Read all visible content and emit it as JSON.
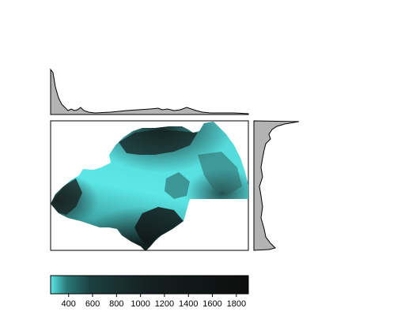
{
  "raster_map": {
    "colors": {
      "low": "#5ce6e6",
      "mid": "#1a2b2b",
      "high": "#0d0d0d",
      "density_fill": "#b3b3b3",
      "frame": "#000000"
    },
    "legend": {
      "range": [
        250,
        1900
      ],
      "ticks": [
        {
          "value": 400,
          "label": "400"
        },
        {
          "value": 600,
          "label": "600"
        },
        {
          "value": 800,
          "label": "800"
        },
        {
          "value": 1000,
          "label": "1000"
        },
        {
          "value": 1200,
          "label": "1200"
        },
        {
          "value": 1400,
          "label": "1400"
        },
        {
          "value": 1600,
          "label": "1600"
        },
        {
          "value": 1800,
          "label": "1800"
        }
      ]
    },
    "top_density_panel": "value distribution along x",
    "right_density_panel": "value distribution along y"
  }
}
